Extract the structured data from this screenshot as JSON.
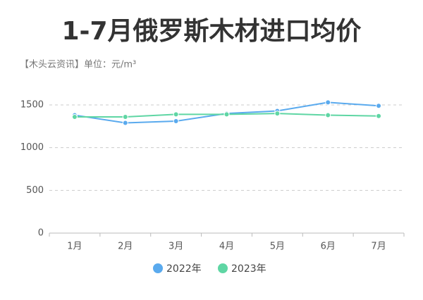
{
  "chart_data": {
    "type": "line",
    "title": "1-7月俄罗斯木材进口均价",
    "subtitle": "【木头云资讯】单位：元/m³",
    "categories": [
      "1月",
      "2月",
      "3月",
      "4月",
      "5月",
      "6月",
      "7月"
    ],
    "series": [
      {
        "name": "2022年",
        "color": "#5aaaee",
        "values": [
          1380,
          1290,
          1310,
          1400,
          1430,
          1530,
          1490
        ]
      },
      {
        "name": "2023年",
        "color": "#5fd6a4",
        "values": [
          1360,
          1360,
          1390,
          1390,
          1400,
          1380,
          1370
        ]
      }
    ],
    "ylim": [
      0,
      1500
    ],
    "yticks": [
      0,
      500,
      1000,
      1500
    ],
    "grid": true,
    "legend": "bottom"
  }
}
